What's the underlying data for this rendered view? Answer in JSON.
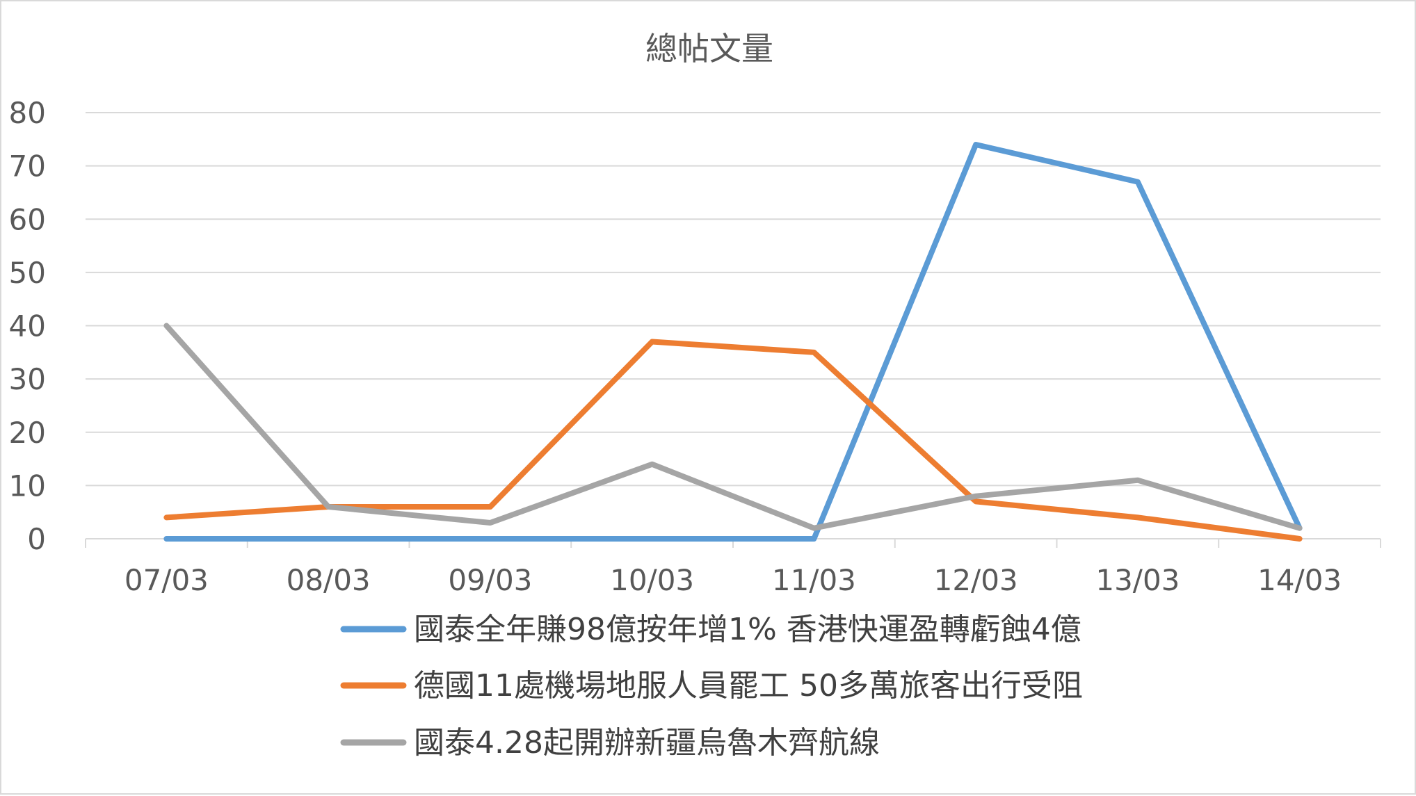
{
  "chart_data": {
    "type": "line",
    "title": "總帖文量",
    "xlabel": "",
    "ylabel": "",
    "categories": [
      "07/03",
      "08/03",
      "09/03",
      "10/03",
      "11/03",
      "12/03",
      "13/03",
      "14/03"
    ],
    "ylim": [
      0,
      80
    ],
    "yticks": [
      0,
      10,
      20,
      30,
      40,
      50,
      60,
      70,
      80
    ],
    "grid": true,
    "legend_position": "bottom",
    "series": [
      {
        "name": "國泰全年賺98億按年增1% 香港快運盈轉虧蝕4億",
        "color": "#5b9bd5",
        "values": [
          0,
          0,
          0,
          0,
          0,
          74,
          67,
          2
        ]
      },
      {
        "name": "德國11處機場地服人員罷工 50多萬旅客出行受阻",
        "color": "#ed7d31",
        "values": [
          4,
          6,
          6,
          37,
          35,
          7,
          4,
          0
        ]
      },
      {
        "name": "國泰4.28起開辦新疆烏魯木齊航線",
        "color": "#a5a5a5",
        "values": [
          40,
          6,
          3,
          14,
          2,
          8,
          11,
          2
        ]
      }
    ]
  }
}
